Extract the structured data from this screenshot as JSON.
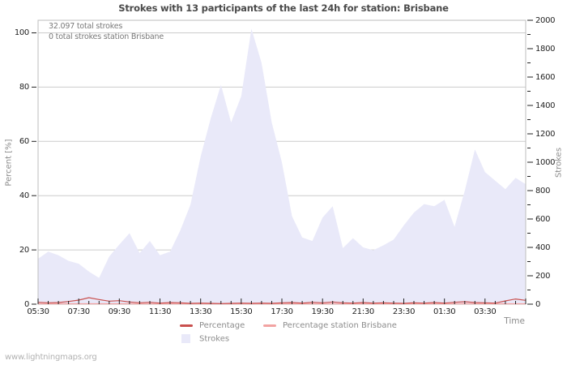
{
  "title": "Strokes with 13 participants of the last 24h for station: Brisbane",
  "annotations": {
    "total_strokes": "32.097 total strokes",
    "station_total_strokes": "0 total strokes station Brisbane"
  },
  "axes": {
    "left": {
      "label": "Percent  [%]",
      "ticks": [
        0,
        20,
        40,
        60,
        80,
        100
      ],
      "range": [
        0,
        100
      ]
    },
    "right": {
      "label": "Strokes",
      "ticks": [
        0,
        200,
        400,
        600,
        800,
        1000,
        1200,
        1400,
        1600,
        1800,
        2000
      ],
      "minor_ticks": [
        100,
        300,
        500,
        700,
        900,
        1100,
        1300,
        1500,
        1700,
        1900
      ],
      "range": [
        0,
        2000
      ]
    },
    "x": {
      "label": "Time",
      "tick_labels": [
        "05:30",
        "07:30",
        "09:30",
        "11:30",
        "13:30",
        "15:30",
        "17:30",
        "19:30",
        "21:30",
        "23:30",
        "01:30",
        "03:30"
      ],
      "minor_interval_minutes": 30,
      "span_hours": 24
    }
  },
  "legend": [
    {
      "label": "Percentage",
      "type": "line",
      "color": "#c9504e"
    },
    {
      "label": "Percentage station Brisbane",
      "type": "line",
      "color": "#f2a3a2"
    },
    {
      "label": "Strokes",
      "type": "area",
      "color": "#e9e9f9"
    }
  ],
  "watermark": "www.lightningmaps.org",
  "colors": {
    "grid": "#cccccc",
    "border": "#bdbdbd",
    "tick": "#222222",
    "area_fill": "#e9e9f9",
    "percentage_line": "#c9504e",
    "station_line": "#f2a3a2",
    "title": "#4a4a4a"
  },
  "chart_data": {
    "type": "area",
    "title": "Strokes with 13 participants of the last 24h for station: Brisbane",
    "xlabel": "Time",
    "ylabel_left": "Percent [%]",
    "ylabel_right": "Strokes",
    "left_ylim": [
      0,
      100
    ],
    "right_ylim": [
      0,
      2000
    ],
    "grid": "horizontal-only",
    "legend_position": "bottom-center",
    "x": [
      "05:30",
      "06:00",
      "06:30",
      "07:00",
      "07:30",
      "08:00",
      "08:30",
      "09:00",
      "09:30",
      "10:00",
      "10:30",
      "11:00",
      "11:30",
      "12:00",
      "12:30",
      "13:00",
      "13:30",
      "14:00",
      "14:30",
      "15:00",
      "15:30",
      "16:00",
      "16:30",
      "17:00",
      "17:30",
      "18:00",
      "18:30",
      "19:00",
      "19:30",
      "20:00",
      "20:30",
      "21:00",
      "21:30",
      "22:00",
      "22:30",
      "23:00",
      "23:30",
      "00:00",
      "00:30",
      "01:00",
      "01:30",
      "02:00",
      "02:30",
      "03:00",
      "03:30",
      "04:00",
      "04:30",
      "05:00",
      "05:30"
    ],
    "series": [
      {
        "name": "Strokes",
        "axis": "right",
        "style": "area",
        "values": [
          320,
          370,
          345,
          305,
          285,
          230,
          185,
          335,
          420,
          500,
          360,
          445,
          345,
          370,
          520,
          700,
          1040,
          1310,
          1545,
          1280,
          1465,
          1940,
          1700,
          1280,
          1000,
          620,
          470,
          445,
          610,
          690,
          395,
          465,
          400,
          380,
          415,
          455,
          555,
          645,
          705,
          690,
          735,
          545,
          800,
          1090,
          930,
          870,
          810,
          890,
          845
        ]
      },
      {
        "name": "Percentage",
        "axis": "left",
        "style": "line",
        "values": [
          0.7,
          0.5,
          0.6,
          1.0,
          1.5,
          2.4,
          1.7,
          1.1,
          1.3,
          0.8,
          0.5,
          0.7,
          0.4,
          0.6,
          0.5,
          0.3,
          0.4,
          0.3,
          0.2,
          0.3,
          0.4,
          0.3,
          0.4,
          0.3,
          0.5,
          0.6,
          0.4,
          0.7,
          0.5,
          0.8,
          0.5,
          0.4,
          0.6,
          0.4,
          0.5,
          0.4,
          0.3,
          0.5,
          0.4,
          0.6,
          0.4,
          0.7,
          0.9,
          0.6,
          0.5,
          0.4,
          1.2,
          1.9,
          1.4
        ]
      },
      {
        "name": "Percentage station Brisbane",
        "axis": "left",
        "style": "line",
        "values": [
          0,
          0,
          0,
          0,
          0,
          0,
          0,
          0,
          0,
          0,
          0,
          0,
          0,
          0,
          0,
          0,
          0,
          0,
          0,
          0,
          0,
          0,
          0,
          0,
          0,
          0,
          0,
          0,
          0,
          0,
          0,
          0,
          0,
          0,
          0,
          0,
          0,
          0,
          0,
          0,
          0,
          0,
          0,
          0,
          0,
          0,
          0,
          0,
          0
        ]
      }
    ],
    "annotations": [
      "32.097 total strokes",
      "0 total strokes station Brisbane"
    ]
  }
}
